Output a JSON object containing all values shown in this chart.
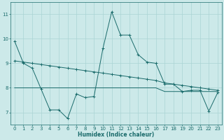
{
  "xlabel": "Humidex (Indice chaleur)",
  "xlim": [
    -0.5,
    23.5
  ],
  "ylim": [
    6.5,
    11.5
  ],
  "yticks": [
    7,
    8,
    9,
    10,
    11
  ],
  "xticks": [
    0,
    1,
    2,
    3,
    4,
    5,
    6,
    7,
    8,
    9,
    10,
    11,
    12,
    13,
    14,
    15,
    16,
    17,
    18,
    19,
    20,
    21,
    22,
    23
  ],
  "background_color": "#cce9e9",
  "grid_color": "#aad4d4",
  "line_color": "#1a6b6b",
  "line1_x": [
    0,
    1,
    2,
    3,
    4,
    5,
    6,
    7,
    8,
    9,
    10,
    11,
    12,
    13,
    14,
    15,
    16,
    17,
    18,
    19,
    20,
    21,
    22,
    23
  ],
  "line1_y": [
    9.9,
    9.0,
    8.8,
    7.95,
    7.1,
    7.1,
    6.75,
    7.75,
    7.6,
    7.65,
    9.6,
    11.1,
    10.15,
    10.15,
    9.35,
    9.05,
    9.0,
    8.15,
    8.15,
    7.85,
    7.9,
    7.9,
    7.05,
    7.8
  ],
  "line2_x": [
    0,
    1,
    2,
    3,
    4,
    5,
    6,
    7,
    8,
    9,
    10,
    11,
    12,
    13,
    14,
    15,
    16,
    17,
    18,
    19,
    20,
    21,
    22,
    23
  ],
  "line2_y": [
    9.1,
    9.05,
    9.0,
    8.95,
    8.9,
    8.85,
    8.8,
    8.75,
    8.7,
    8.65,
    8.6,
    8.55,
    8.5,
    8.45,
    8.4,
    8.35,
    8.3,
    8.2,
    8.15,
    8.1,
    8.05,
    8.0,
    7.95,
    7.9
  ],
  "line3_x": [
    0,
    1,
    2,
    3,
    4,
    5,
    6,
    7,
    8,
    9,
    10,
    11,
    12,
    13,
    14,
    15,
    16,
    17,
    18,
    19,
    20,
    21,
    22,
    23
  ],
  "line3_y": [
    8.0,
    8.0,
    8.0,
    8.0,
    8.0,
    8.0,
    8.0,
    8.0,
    8.0,
    8.0,
    8.0,
    8.0,
    8.0,
    8.0,
    8.0,
    8.0,
    8.0,
    7.85,
    7.85,
    7.85,
    7.85,
    7.85,
    7.85,
    7.85
  ]
}
